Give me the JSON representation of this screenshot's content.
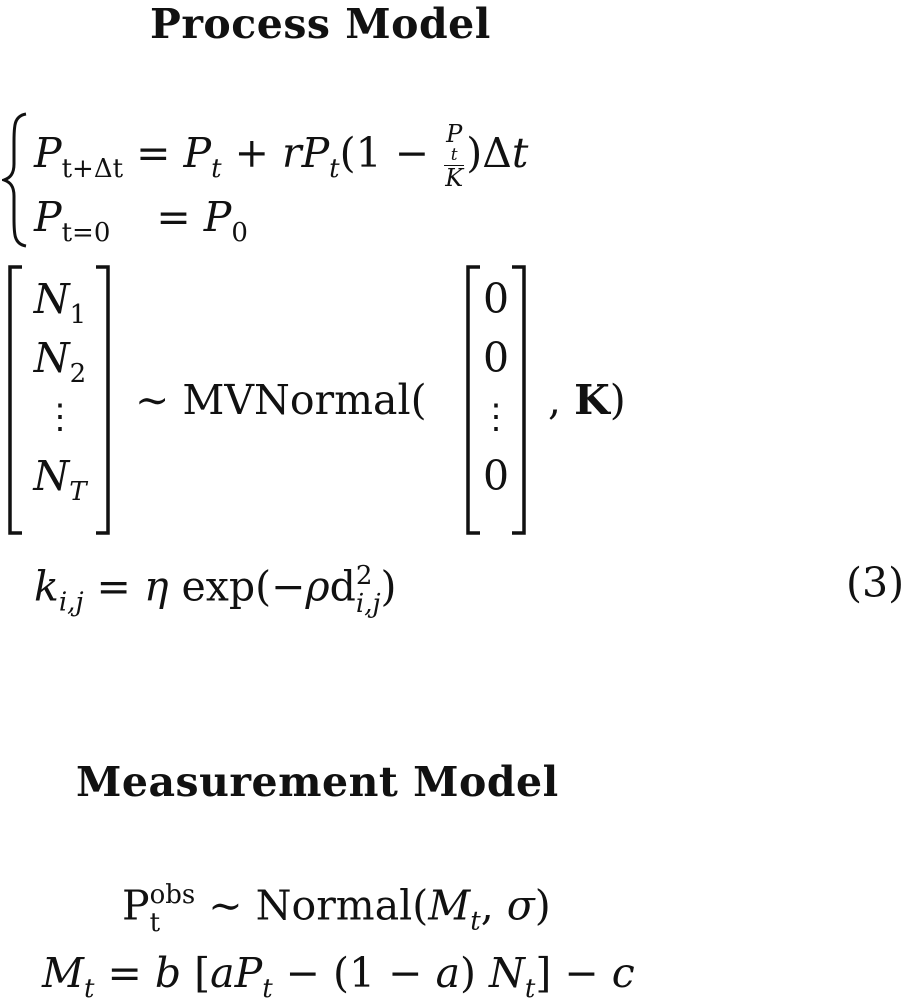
{
  "process": {
    "heading": "Process Model",
    "eq1": {
      "lhs_var": "P",
      "lhs_sub": "t+Δt",
      "rhs_a": "= ",
      "p": "P",
      "p_sub": "t",
      "plus_r": " + r",
      "p2": "P",
      "p2_sub": "t",
      "paren_open": "(1 − ",
      "frac_num": "P",
      "frac_num_sub": "t",
      "frac_den": "K",
      "paren_close": ")Δ",
      "t": "t"
    },
    "eq2": {
      "lhs_var": "P",
      "lhs_sub": "t=0",
      "eq": "= ",
      "rhs": "P",
      "rhs_sub": "0"
    },
    "vector_left": [
      {
        "v": "N",
        "s": "1"
      },
      {
        "v": "N",
        "s": "2"
      },
      {
        "v": "⋮",
        "s": ""
      },
      {
        "v": "N",
        "s": "T"
      }
    ],
    "sim": "∼ MVNormal(",
    "vector_right": [
      "0",
      "0",
      "⋮",
      "0"
    ],
    "after_vec": ", ",
    "bold_K": "K",
    "close": ")",
    "kernel": {
      "k": "k",
      "k_sub": "i,j",
      "eq": " = ",
      "eta": "η",
      "exp": " exp(−",
      "rho": "ρ",
      "d": "d",
      "d_sup": "2",
      "d_sub": "i,j",
      "close": ")"
    },
    "eq_number": "(3)"
  },
  "measurement": {
    "heading": "Measurement Model",
    "line1": {
      "p": "P",
      "p_sup": "obs",
      "p_sub": "t",
      "rest": " ∼ Normal(",
      "m": "M",
      "m_sub": "t",
      "comma": ", ",
      "sigma": "σ",
      "close": ")"
    },
    "line2": {
      "m": "M",
      "m_sub": "t",
      "eq": " = ",
      "b": "b",
      "br_open": "  [",
      "a": "a",
      "p": "P",
      "p_sub": "t",
      "minus": " − (1 − ",
      "a2": "a",
      "close_paren": ") ",
      "n": "N",
      "n_sub": "t",
      "br_close": "] − ",
      "c": "c"
    }
  }
}
